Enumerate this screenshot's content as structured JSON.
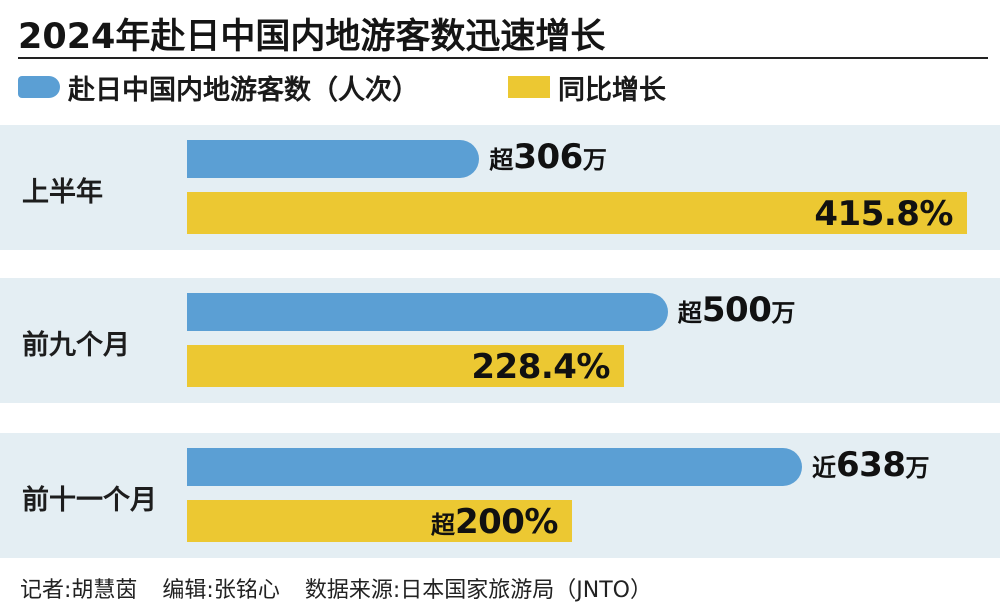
{
  "title": "2024年赴日中国内地游客数迅速增长",
  "legend": [
    {
      "label": "赴日中国内地游客数（人次）",
      "color": "#5b9fd4"
    },
    {
      "label": "同比增长",
      "color": "#ecc832"
    }
  ],
  "colors": {
    "background_band": "#e4eef3",
    "blue": "#5b9fd4",
    "yellow": "#ecc832"
  },
  "chart_data": {
    "type": "bar",
    "orientation": "horizontal",
    "categories": [
      "上半年",
      "前九个月",
      "前十一个月"
    ],
    "series": [
      {
        "name": "赴日中国内地游客数（人次）",
        "values": [
          3060000,
          5000000,
          6380000
        ],
        "labels": [
          {
            "prefix": "超",
            "number": "306",
            "suffix": "万"
          },
          {
            "prefix": "超",
            "number": "500",
            "suffix": "万"
          },
          {
            "prefix": "近",
            "number": "638",
            "suffix": "万"
          }
        ]
      },
      {
        "name": "同比增长",
        "values": [
          415.8,
          228.4,
          200
        ],
        "labels": [
          {
            "prefix": "",
            "number": "415.8%"
          },
          {
            "prefix": "",
            "number": "228.4%"
          },
          {
            "prefix": "超",
            "number": "200%"
          }
        ]
      }
    ],
    "axis": "none",
    "grid": false,
    "legend_position": "top-left"
  },
  "footer": {
    "reporter": "记者:胡慧茵",
    "editor": "编辑:张铭心",
    "source": "数据来源:日本国家旅游局（JNTO）"
  }
}
